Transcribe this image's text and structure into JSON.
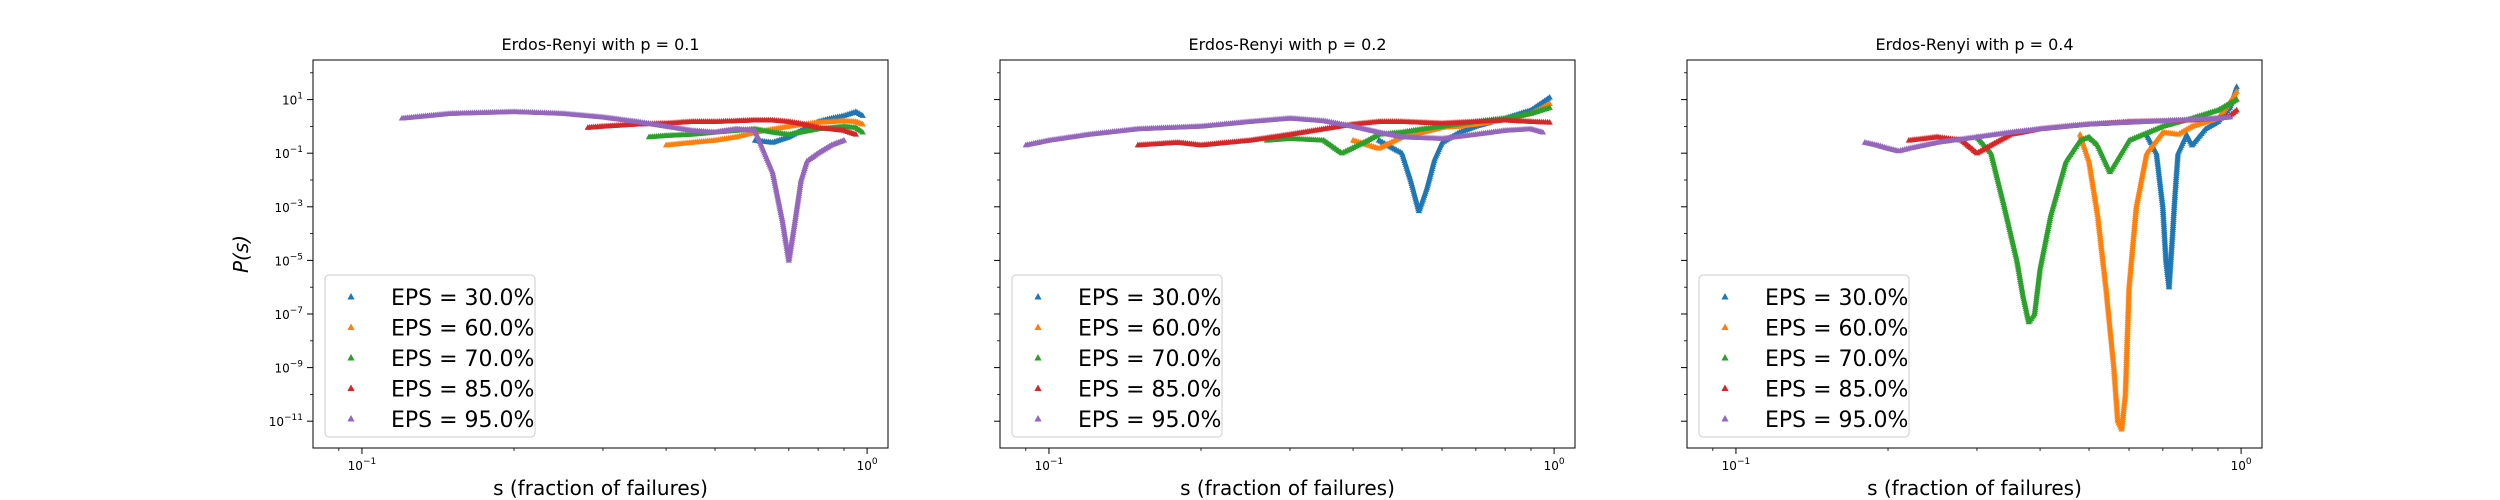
{
  "colors": {
    "EPS = 30.0%": "#1f77b4",
    "EPS = 60.0%": "#ff7f0e",
    "EPS = 70.0%": "#2ca02c",
    "EPS = 85.0%": "#d62728",
    "EPS = 95.0%": "#9467bd"
  },
  "chart_data": [
    {
      "type": "scatter",
      "title": "Erdos-Renyi with p = 0.1",
      "xlabel": "s (fraction of failures)",
      "ylabel": "P(s)",
      "xscale": "log",
      "yscale": "log",
      "xlim": [
        0.08,
        1.1
      ],
      "ylim": [
        1e-12,
        300
      ],
      "xticks": [
        0.1,
        1
      ],
      "xtick_labels": [
        "10^-1",
        "10^0"
      ],
      "yticks": [
        1e-11,
        1e-09,
        1e-07,
        1e-05,
        0.001,
        0.1,
        10
      ],
      "ytick_labels": [
        "10^-11",
        "10^-9",
        "10^-7",
        "10^-5",
        "10^-3",
        "10^-1",
        "10^1"
      ],
      "marker": "triangle",
      "legend_position": "lower-left",
      "series": [
        {
          "name": "EPS = 30.0%",
          "x": [
            0.6,
            0.65,
            0.7,
            0.75,
            0.8,
            0.85,
            0.9,
            0.95,
            0.98
          ],
          "y": [
            0.3,
            0.25,
            0.4,
            0.8,
            1.5,
            2.0,
            2.5,
            3.5,
            2.5
          ]
        },
        {
          "name": "EPS = 60.0%",
          "x": [
            0.4,
            0.45,
            0.5,
            0.55,
            0.6,
            0.7,
            0.8,
            0.9,
            0.95,
            0.98
          ],
          "y": [
            0.2,
            0.25,
            0.3,
            0.4,
            0.6,
            1.0,
            1.4,
            1.6,
            1.5,
            1.2
          ]
        },
        {
          "name": "EPS = 70.0%",
          "x": [
            0.37,
            0.4,
            0.45,
            0.5,
            0.55,
            0.6,
            0.65,
            0.7,
            0.8,
            0.9,
            0.95,
            0.98
          ],
          "y": [
            0.4,
            0.45,
            0.5,
            0.6,
            0.7,
            0.8,
            0.6,
            0.5,
            0.8,
            1.0,
            0.9,
            0.6
          ]
        },
        {
          "name": "EPS = 85.0%",
          "x": [
            0.28,
            0.3,
            0.35,
            0.4,
            0.45,
            0.5,
            0.55,
            0.6,
            0.65,
            0.7,
            0.75,
            0.8,
            0.9,
            0.95
          ],
          "y": [
            0.9,
            1.0,
            1.2,
            1.3,
            1.5,
            1.5,
            1.6,
            1.7,
            1.7,
            1.5,
            1.2,
            0.9,
            0.7,
            0.5
          ]
        },
        {
          "name": "EPS = 95.0%",
          "x": [
            0.12,
            0.15,
            0.2,
            0.25,
            0.3,
            0.35,
            0.4,
            0.45,
            0.5,
            0.55,
            0.6,
            0.65,
            0.68,
            0.7,
            0.72,
            0.74,
            0.76,
            0.8,
            0.85,
            0.9
          ],
          "y": [
            2.0,
            3.0,
            3.5,
            3.0,
            2.2,
            1.5,
            1.0,
            0.7,
            0.6,
            0.8,
            0.7,
            0.02,
            0.0003,
            1e-05,
            0.0003,
            0.01,
            0.05,
            0.1,
            0.2,
            0.3
          ]
        }
      ]
    },
    {
      "type": "scatter",
      "title": "Erdos-Renyi with p = 0.2",
      "xlabel": "s (fraction of failures)",
      "ylabel": "",
      "xscale": "log",
      "yscale": "log",
      "xlim": [
        0.08,
        1.1
      ],
      "ylim": [
        1e-12,
        300
      ],
      "xticks": [
        0.1,
        1
      ],
      "xtick_labels": [
        "10^-1",
        "10^0"
      ],
      "yticks": [
        1e-11,
        1e-09,
        1e-07,
        1e-05,
        0.001,
        0.1,
        10
      ],
      "ytick_labels": [
        "",
        "",
        "",
        "",
        "",
        "",
        ""
      ],
      "marker": "triangle",
      "legend_position": "lower-left",
      "series": [
        {
          "name": "EPS = 30.0%",
          "x": [
            0.45,
            0.5,
            0.52,
            0.54,
            0.56,
            0.58,
            0.6,
            0.65,
            0.7,
            0.8,
            0.9,
            0.95,
            0.98
          ],
          "y": [
            0.3,
            0.1,
            0.01,
            0.0007,
            0.005,
            0.06,
            0.25,
            0.6,
            1.0,
            2.0,
            4.0,
            8.0,
            12.0
          ]
        },
        {
          "name": "EPS = 60.0%",
          "x": [
            0.4,
            0.45,
            0.5,
            0.55,
            0.6,
            0.65,
            0.7,
            0.8,
            0.9,
            0.95,
            0.98
          ],
          "y": [
            0.3,
            0.15,
            0.4,
            0.6,
            0.9,
            1.0,
            1.2,
            1.8,
            3.0,
            5.0,
            7.0
          ]
        },
        {
          "name": "EPS = 70.0%",
          "x": [
            0.27,
            0.3,
            0.35,
            0.38,
            0.42,
            0.45,
            0.5,
            0.55,
            0.6,
            0.7,
            0.8,
            0.9,
            0.98
          ],
          "y": [
            0.3,
            0.35,
            0.3,
            0.1,
            0.25,
            0.5,
            0.6,
            0.8,
            1.0,
            1.5,
            2.0,
            3.0,
            5.0
          ]
        },
        {
          "name": "EPS = 85.0%",
          "x": [
            0.15,
            0.18,
            0.2,
            0.25,
            0.3,
            0.35,
            0.4,
            0.45,
            0.5,
            0.6,
            0.7,
            0.8,
            0.9,
            0.98
          ],
          "y": [
            0.2,
            0.25,
            0.2,
            0.3,
            0.5,
            0.8,
            1.2,
            1.5,
            1.5,
            1.3,
            1.5,
            1.7,
            1.5,
            1.4
          ]
        },
        {
          "name": "EPS = 95.0%",
          "x": [
            0.09,
            0.1,
            0.12,
            0.15,
            0.2,
            0.25,
            0.3,
            0.35,
            0.4,
            0.45,
            0.5,
            0.6,
            0.7,
            0.8,
            0.9,
            0.95
          ],
          "y": [
            0.2,
            0.3,
            0.5,
            0.8,
            1.0,
            1.5,
            2.0,
            1.6,
            1.0,
            0.6,
            0.4,
            0.35,
            0.5,
            0.7,
            0.8,
            0.6
          ]
        }
      ]
    },
    {
      "type": "scatter",
      "title": "Erdos-Renyi with p = 0.4",
      "xlabel": "s (fraction of failures)",
      "ylabel": "",
      "xscale": "log",
      "yscale": "log",
      "xlim": [
        0.08,
        1.1
      ],
      "ylim": [
        1e-12,
        300
      ],
      "xticks": [
        0.1,
        1
      ],
      "xtick_labels": [
        "10^-1",
        "10^0"
      ],
      "yticks": [
        1e-11,
        1e-09,
        1e-07,
        1e-05,
        0.001,
        0.1,
        10
      ],
      "ytick_labels": [
        "",
        "",
        "",
        "",
        "",
        "",
        ""
      ],
      "marker": "triangle",
      "legend_position": "lower-left",
      "series": [
        {
          "name": "EPS = 30.0%",
          "x": [
            0.65,
            0.68,
            0.7,
            0.71,
            0.72,
            0.73,
            0.74,
            0.75,
            0.78,
            0.8,
            0.85,
            0.9,
            0.95,
            0.98
          ],
          "y": [
            0.5,
            0.1,
            0.001,
            1e-05,
            1e-06,
            5e-05,
            0.003,
            0.1,
            0.5,
            0.2,
            0.8,
            1.5,
            5.0,
            30.0
          ]
        },
        {
          "name": "EPS = 60.0%",
          "x": [
            0.48,
            0.5,
            0.52,
            0.54,
            0.56,
            0.57,
            0.58,
            0.59,
            0.6,
            0.62,
            0.65,
            0.7,
            0.75,
            0.8,
            0.9,
            0.95,
            0.98
          ],
          "y": [
            0.5,
            0.05,
            0.0005,
            1e-06,
            1e-09,
            1e-11,
            5e-12,
            1e-10,
            1e-06,
            0.001,
            0.1,
            0.6,
            0.5,
            1.0,
            2.0,
            8.0,
            20.0
          ]
        },
        {
          "name": "EPS = 70.0%",
          "x": [
            0.3,
            0.32,
            0.34,
            0.36,
            0.37,
            0.38,
            0.39,
            0.4,
            0.42,
            0.45,
            0.48,
            0.5,
            0.52,
            0.55,
            0.6,
            0.7,
            0.8,
            0.9,
            0.98
          ],
          "y": [
            0.4,
            0.1,
            0.001,
            1e-05,
            5e-07,
            5e-08,
            1e-07,
            5e-06,
            0.0005,
            0.05,
            0.3,
            0.4,
            0.2,
            0.02,
            0.3,
            1.0,
            2.0,
            4.0,
            10.0
          ]
        },
        {
          "name": "EPS = 85.0%",
          "x": [
            0.22,
            0.25,
            0.28,
            0.3,
            0.32,
            0.35,
            0.4,
            0.45,
            0.5,
            0.55,
            0.6,
            0.7,
            0.8,
            0.9,
            0.95,
            0.98
          ],
          "y": [
            0.3,
            0.4,
            0.3,
            0.1,
            0.2,
            0.5,
            0.8,
            1.0,
            1.2,
            1.3,
            1.5,
            1.6,
            1.7,
            2.0,
            2.5,
            4.0
          ]
        },
        {
          "name": "EPS = 95.0%",
          "x": [
            0.18,
            0.19,
            0.2,
            0.21,
            0.22,
            0.25,
            0.3,
            0.35,
            0.4,
            0.45,
            0.5,
            0.6,
            0.7,
            0.8,
            0.9,
            0.95
          ],
          "y": [
            0.25,
            0.2,
            0.15,
            0.12,
            0.15,
            0.25,
            0.4,
            0.6,
            0.8,
            1.0,
            1.2,
            1.4,
            1.6,
            1.8,
            2.0,
            2.2
          ]
        }
      ]
    }
  ]
}
